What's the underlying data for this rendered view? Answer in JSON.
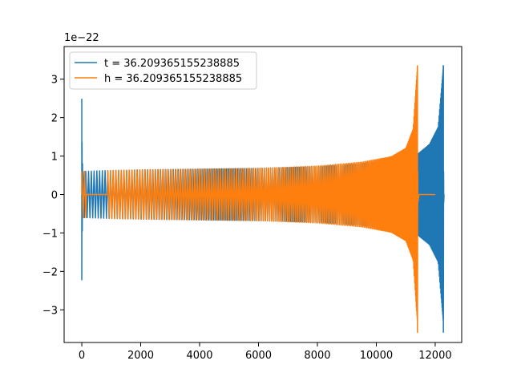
{
  "chart_data": {
    "type": "line",
    "title": "",
    "xlabel": "",
    "ylabel": "",
    "xlim": [
      -600,
      12900
    ],
    "ylim": [
      -3.85,
      3.85
    ],
    "y_scale_label": "1e−22",
    "x_ticks": [
      {
        "value": 0,
        "label": "0"
      },
      {
        "value": 2000,
        "label": "2000"
      },
      {
        "value": 4000,
        "label": "4000"
      },
      {
        "value": 6000,
        "label": "6000"
      },
      {
        "value": 8000,
        "label": "8000"
      },
      {
        "value": 10000,
        "label": "10000"
      },
      {
        "value": 12000,
        "label": "12000"
      }
    ],
    "y_ticks": [
      {
        "value": 3,
        "label": "3"
      },
      {
        "value": 2,
        "label": "2"
      },
      {
        "value": 1,
        "label": "1"
      },
      {
        "value": 0,
        "label": "0"
      },
      {
        "value": -1,
        "label": "−1"
      },
      {
        "value": -2,
        "label": "−2"
      },
      {
        "value": -3,
        "label": "−3"
      }
    ],
    "grid": false,
    "legend_position": "top-left",
    "series": [
      {
        "name": "t = 36.209365155238885",
        "color": "#1f77b4",
        "description": "oscillation; initial spike to 2.48 at x=0 then ringing; chirp grows to +/-3.35 at x~12280, flat 0 afterward",
        "envelope": {
          "x": [
            0,
            800,
            2000,
            4000,
            6000,
            8000,
            9500,
            10500,
            11400,
            11800,
            12100,
            12280
          ],
          "amp": [
            0.6,
            0.62,
            0.64,
            0.66,
            0.68,
            0.72,
            0.8,
            0.9,
            1.05,
            1.3,
            1.75,
            3.35
          ]
        },
        "merger_x": 12280,
        "end_x": 12300,
        "start_spike": [
          2.48,
          -2.22
        ]
      },
      {
        "name": "h = 36.209365155238885",
        "color": "#ff7f0e",
        "description": "oscillation starting ~+/-0.6, flat 0 between ~150 and ~880, chirp to +/-3.35 at x~11400, flat 0 to ~12000",
        "envelope": {
          "x": [
            0,
            880,
            2000,
            4000,
            6000,
            8000,
            9500,
            10500,
            11000,
            11250,
            11400
          ],
          "amp": [
            0.6,
            0.62,
            0.64,
            0.66,
            0.68,
            0.74,
            0.84,
            0.98,
            1.2,
            1.7,
            3.35
          ]
        },
        "gap": [
          150,
          880
        ],
        "merger_x": 11400,
        "end_x": 11450,
        "tail_end_x": 12000
      }
    ]
  }
}
